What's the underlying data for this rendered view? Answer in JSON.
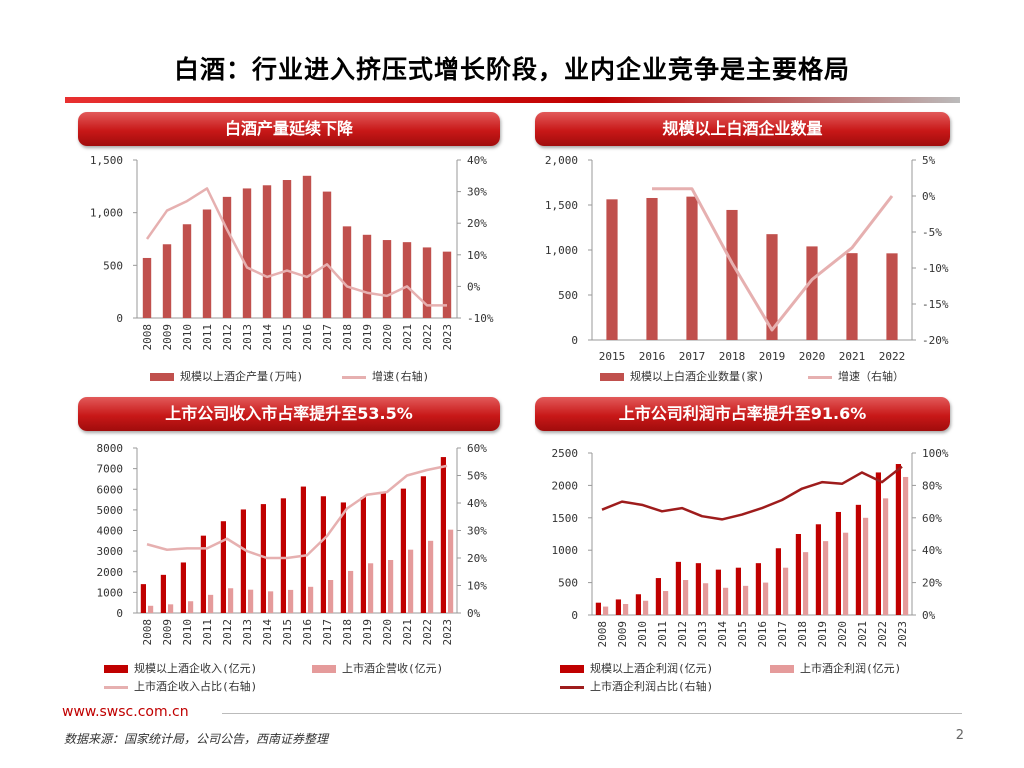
{
  "slide": {
    "title": "白酒：行业进入挤压式增长阶段，业内企业竞争是主要格局",
    "footer_url": "www.swsc.com.cn",
    "source_note": "数据来源：国家统计局，公司公告，西南证券整理",
    "page_number": "2"
  },
  "colors": {
    "bar_primary": "#c0504d",
    "line_light": "#e6b0b0",
    "bar_dark": "#c00000",
    "bar_pink": "#e59b9b",
    "line_dark": "#9e1c1c"
  },
  "chart_data": [
    {
      "title": "白酒产量延续下降",
      "type": "bar",
      "categories": [
        "2008",
        "2009",
        "2010",
        "2011",
        "2012",
        "2013",
        "2014",
        "2015",
        "2016",
        "2017",
        "2018",
        "2019",
        "2020",
        "2021",
        "2022",
        "2023"
      ],
      "series": [
        {
          "name": "规模以上酒企产量(万吨)",
          "type": "bar",
          "axis": "left",
          "values": [
            570,
            700,
            890,
            1030,
            1150,
            1230,
            1260,
            1310,
            1350,
            1200,
            870,
            790,
            740,
            720,
            670,
            630
          ]
        },
        {
          "name": "增速(右轴)",
          "type": "line",
          "axis": "right",
          "values": [
            15,
            24,
            27,
            31,
            18,
            6,
            3,
            5,
            3,
            7,
            0,
            -2,
            -3,
            0,
            -6,
            -6
          ]
        }
      ],
      "left_axis": {
        "min": 0,
        "max": 1500,
        "ticks": [
          0,
          500,
          1000,
          1500
        ],
        "tick_labels": [
          "0",
          "500",
          "1,000",
          "1,500"
        ]
      },
      "right_axis": {
        "min": -10,
        "max": 40,
        "ticks": [
          -10,
          0,
          10,
          20,
          30,
          40
        ],
        "tick_labels": [
          "-10%",
          "0%",
          "10%",
          "20%",
          "30%",
          "40%"
        ]
      },
      "legend": [
        "规模以上酒企产量(万吨)",
        "增速(右轴)"
      ],
      "xlabel_rotated": true
    },
    {
      "title": "规模以上白酒企业数量",
      "type": "bar",
      "categories": [
        "2015",
        "2016",
        "2017",
        "2018",
        "2019",
        "2020",
        "2021",
        "2022"
      ],
      "series": [
        {
          "name": "规模以上白酒企业数量(家)",
          "type": "bar",
          "axis": "left",
          "values": [
            1563,
            1578,
            1593,
            1445,
            1176,
            1040,
            965,
            963
          ]
        },
        {
          "name": "增速（右轴）",
          "type": "line",
          "axis": "right",
          "values": [
            null,
            1,
            1,
            -9.3,
            -18.6,
            -11.6,
            -7.2,
            0
          ]
        }
      ],
      "left_axis": {
        "min": 0,
        "max": 2000,
        "ticks": [
          0,
          500,
          1000,
          1500,
          2000
        ],
        "tick_labels": [
          "0",
          "500",
          "1,000",
          "1,500",
          "2,000"
        ]
      },
      "right_axis": {
        "min": -20,
        "max": 5,
        "ticks": [
          -20,
          -15,
          -10,
          -5,
          0,
          5
        ],
        "tick_labels": [
          "-20%",
          "-15%",
          "-10%",
          "-5%",
          "0%",
          "5%"
        ]
      },
      "legend": [
        "规模以上白酒企业数量(家)",
        "增速（右轴）"
      ],
      "xlabel_rotated": false
    },
    {
      "title": "上市公司收入市占率提升至53.5%",
      "type": "bar",
      "categories": [
        "2008",
        "2009",
        "2010",
        "2011",
        "2012",
        "2013",
        "2014",
        "2015",
        "2016",
        "2017",
        "2018",
        "2019",
        "2020",
        "2021",
        "2022",
        "2023"
      ],
      "series": [
        {
          "name": "规模以上酒企收入(亿元)",
          "type": "bar",
          "axis": "left",
          "values": [
            1400,
            1850,
            2450,
            3750,
            4450,
            5020,
            5280,
            5560,
            6130,
            5660,
            5360,
            5620,
            5840,
            6030,
            6630,
            7560
          ]
        },
        {
          "name": "上市酒企营收(亿元)",
          "type": "bar",
          "axis": "left",
          "values": [
            350,
            420,
            570,
            880,
            1200,
            1130,
            1050,
            1120,
            1270,
            1600,
            2040,
            2410,
            2570,
            3070,
            3500,
            4040
          ]
        },
        {
          "name": "上市酒企收入占比(右轴)",
          "type": "line",
          "axis": "right",
          "values": [
            25,
            23,
            23.5,
            23.5,
            27,
            22.5,
            20,
            20,
            21,
            28,
            38,
            43,
            44,
            50,
            52,
            53.5
          ]
        }
      ],
      "left_axis": {
        "min": 0,
        "max": 8000,
        "ticks": [
          0,
          1000,
          2000,
          3000,
          4000,
          5000,
          6000,
          7000,
          8000
        ],
        "tick_labels": [
          "0",
          "1000",
          "2000",
          "3000",
          "4000",
          "5000",
          "6000",
          "7000",
          "8000"
        ]
      },
      "right_axis": {
        "min": 0,
        "max": 60,
        "ticks": [
          0,
          10,
          20,
          30,
          40,
          50,
          60
        ],
        "tick_labels": [
          "0%",
          "10%",
          "20%",
          "30%",
          "40%",
          "50%",
          "60%"
        ]
      },
      "legend": [
        "规模以上酒企收入(亿元)",
        "上市酒企营收(亿元)",
        "上市酒企收入占比(右轴)"
      ],
      "xlabel_rotated": true
    },
    {
      "title": "上市公司利润市占率提升至91.6%",
      "type": "bar",
      "categories": [
        "2008",
        "2009",
        "2010",
        "2011",
        "2012",
        "2013",
        "2014",
        "2015",
        "2016",
        "2017",
        "2018",
        "2019",
        "2020",
        "2021",
        "2022",
        "2023"
      ],
      "series": [
        {
          "name": "规模以上酒企利润(亿元)",
          "type": "bar",
          "axis": "left",
          "values": [
            190,
            240,
            320,
            570,
            820,
            800,
            700,
            730,
            800,
            1030,
            1250,
            1400,
            1590,
            1700,
            2200,
            2330
          ]
        },
        {
          "name": "上市酒企利润(亿元)",
          "type": "bar",
          "axis": "left",
          "values": [
            130,
            170,
            220,
            370,
            540,
            490,
            420,
            450,
            500,
            730,
            970,
            1140,
            1270,
            1500,
            1800,
            2130
          ]
        },
        {
          "name": "上市酒企利润占比(右轴)",
          "type": "line",
          "axis": "right",
          "values": [
            65,
            70,
            68,
            64,
            66,
            61,
            59,
            62,
            66,
            71,
            78,
            82,
            81,
            88,
            82,
            91.6
          ]
        }
      ],
      "left_axis": {
        "min": 0,
        "max": 2500,
        "ticks": [
          0,
          500,
          1000,
          1500,
          2000,
          2500
        ],
        "tick_labels": [
          "0",
          "500",
          "1000",
          "1500",
          "2000",
          "2500"
        ]
      },
      "right_axis": {
        "min": 0,
        "max": 100,
        "ticks": [
          0,
          20,
          40,
          60,
          80,
          100
        ],
        "tick_labels": [
          "0%",
          "20%",
          "40%",
          "60%",
          "80%",
          "100%"
        ]
      },
      "legend": [
        "规模以上酒企利润(亿元)",
        "上市酒企利润(亿元)",
        "上市酒企利润占比(右轴)"
      ],
      "xlabel_rotated": true
    }
  ]
}
